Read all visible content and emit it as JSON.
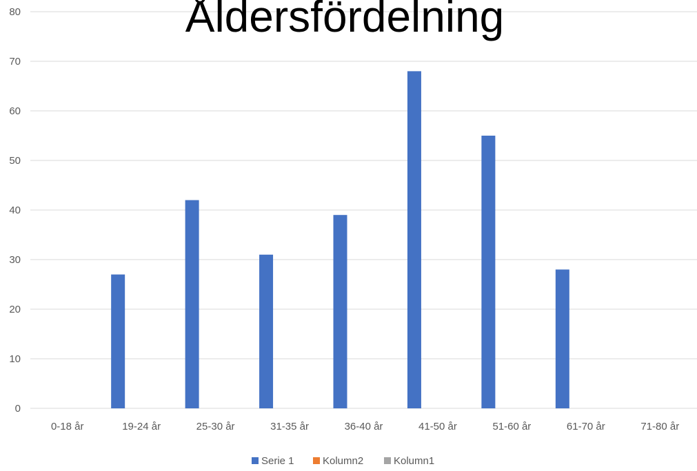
{
  "chart_data": {
    "type": "bar",
    "title": "Åldersfördelning",
    "categories": [
      "0-18 år",
      "19-24 år",
      "25-30 år",
      "31-35 år",
      "36-40 år",
      "41-50 år",
      "51-60 år",
      "61-70 år",
      "71-80 år"
    ],
    "series": [
      {
        "name": "Serie 1",
        "color": "#4472C4",
        "values": [
          0,
          27,
          42,
          31,
          39,
          68,
          55,
          28,
          0
        ]
      },
      {
        "name": "Kolumn2",
        "color": "#ED7D31",
        "values": [
          0,
          0,
          0,
          0,
          0,
          0,
          0,
          0,
          0
        ]
      },
      {
        "name": "Kolumn1",
        "color": "#A5A5A5",
        "values": [
          0,
          0,
          0,
          0,
          0,
          0,
          0,
          0,
          0
        ]
      }
    ],
    "yticks": [
      "0",
      "10",
      "20",
      "30",
      "40",
      "50",
      "60",
      "70",
      "80"
    ],
    "ylim": [
      0,
      80
    ],
    "xlabel": "",
    "ylabel": "",
    "grid": true,
    "legend": "bottom"
  },
  "colors": {
    "gridline": "#D9D9D9",
    "text": "#595959",
    "title": "#000000"
  }
}
